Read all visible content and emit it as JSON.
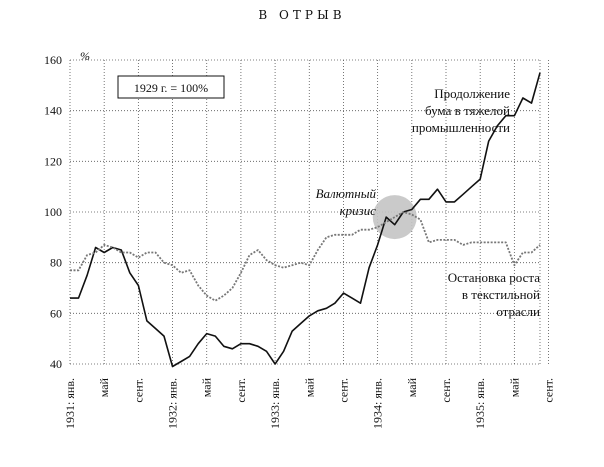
{
  "chart_data": {
    "type": "line",
    "title": "В ОТРЫВ",
    "ylabel": "%",
    "ylim": [
      40,
      160
    ],
    "yticks": [
      40,
      60,
      80,
      100,
      120,
      140,
      160
    ],
    "x_tick_labels": [
      "1931: янв.",
      "май",
      "сент.",
      "1932: янв.",
      "май",
      "сент.",
      "1933: янв.",
      "май",
      "сент.",
      "1934: янв.",
      "май",
      "сент.",
      "1935: янв.",
      "май",
      "сент."
    ],
    "base_note": "1929 г. = 100%",
    "annotations": {
      "heavy": [
        "Продолжение",
        "бума в тяжелой",
        "промышленности"
      ],
      "crisis": [
        "Валютный",
        "кризис"
      ],
      "textile": [
        "Остановка роста",
        "в текстильной",
        "отрасли"
      ]
    },
    "grid": "dotted",
    "series": [
      {
        "style": "solid",
        "values": [
          66,
          66,
          75,
          86,
          84,
          86,
          85,
          76,
          71,
          57,
          54,
          51,
          39,
          41,
          43,
          48,
          52,
          51,
          47,
          46,
          48,
          48,
          47,
          45,
          40,
          45,
          53,
          56,
          59,
          61,
          62,
          64,
          68,
          66,
          64,
          78,
          87,
          98,
          95,
          100,
          101,
          105,
          105,
          109,
          104,
          104,
          107,
          110,
          113,
          128,
          134,
          138,
          138,
          145,
          143,
          155
        ]
      },
      {
        "style": "dotted",
        "values": [
          77,
          77,
          83,
          84,
          87,
          86,
          84,
          84,
          82,
          84,
          84,
          80,
          79,
          76,
          77,
          71,
          67,
          65,
          67,
          70,
          76,
          83,
          85,
          81,
          79,
          78,
          79,
          80,
          79,
          85,
          90,
          91,
          91,
          91,
          93,
          93,
          94,
          96,
          98,
          100,
          99,
          97,
          88,
          89,
          89,
          89,
          87,
          88,
          88,
          88,
          88,
          88,
          79,
          84,
          84,
          87
        ]
      }
    ]
  },
  "colors": {
    "line": "#111111",
    "grid": "#555555",
    "highlight": "#c4c4c4",
    "dotted_series": "#777777"
  }
}
